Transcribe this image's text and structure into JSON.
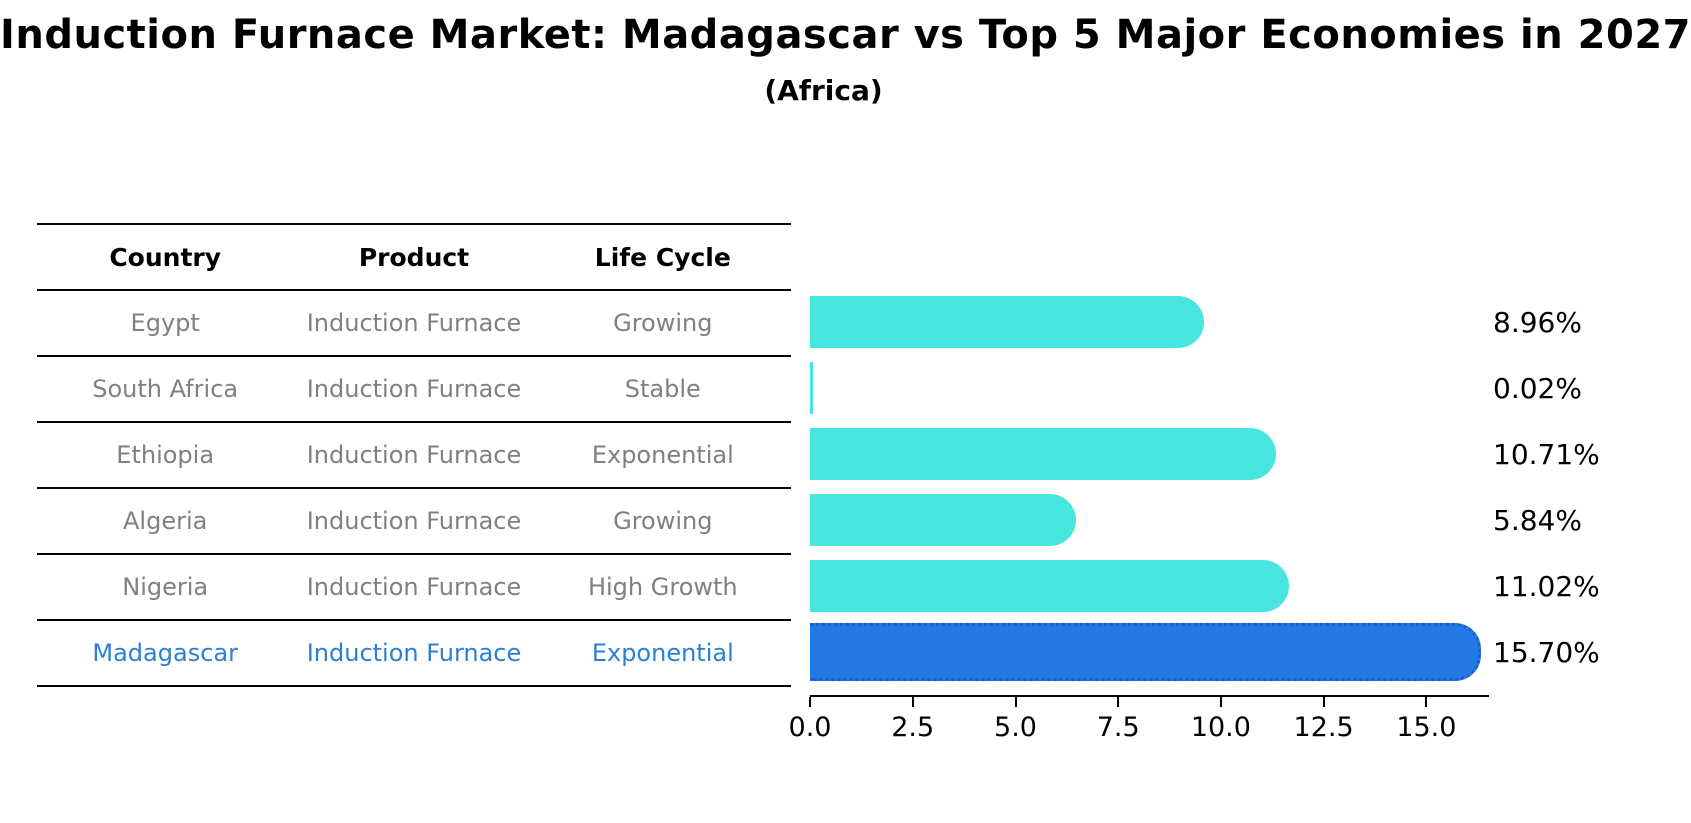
{
  "table": {
    "headers": [
      "Country",
      "Product",
      "Life Cycle"
    ],
    "rows": [
      {
        "country": "Egypt",
        "product": "Induction Furnace",
        "life_cycle": "Growing",
        "highlight": false
      },
      {
        "country": "South Africa",
        "product": "Induction Furnace",
        "life_cycle": "Stable",
        "highlight": false
      },
      {
        "country": "Ethiopia",
        "product": "Induction Furnace",
        "life_cycle": "Exponential",
        "highlight": false
      },
      {
        "country": "Algeria",
        "product": "Induction Furnace",
        "life_cycle": "Growing",
        "highlight": false
      },
      {
        "country": "Nigeria",
        "product": "Induction Furnace",
        "life_cycle": "High Growth",
        "highlight": false
      },
      {
        "country": "Madagascar",
        "product": "Induction Furnace",
        "life_cycle": "Exponential",
        "highlight": true
      }
    ]
  },
  "chart_data": {
    "type": "bar",
    "orientation": "horizontal",
    "title": "Induction Furnace Market: Madagascar vs Top 5 Major Economies in 2027",
    "subtitle": "(Africa)",
    "categories": [
      "Egypt",
      "South Africa",
      "Ethiopia",
      "Algeria",
      "Nigeria",
      "Madagascar"
    ],
    "values": [
      8.96,
      0.02,
      10.71,
      5.84,
      11.02,
      15.7
    ],
    "value_labels": [
      "8.96%",
      "0.02%",
      "10.71%",
      "5.84%",
      "11.02%",
      "15.70%"
    ],
    "x_ticks": [
      "0.0",
      "2.5",
      "5.0",
      "7.5",
      "10.0",
      "12.5",
      "15.0"
    ],
    "x_tick_values": [
      0.0,
      2.5,
      5.0,
      7.5,
      10.0,
      12.5,
      15.0
    ],
    "xlim": [
      0,
      16.5
    ],
    "xlabel": "",
    "ylabel": "",
    "grid": false,
    "legend": false,
    "highlight_index": 5,
    "bar_color": "#48e5e0",
    "highlight_bar_color": "#2379e4",
    "highlight_bar_edge_color": "#1660cf",
    "highlight_text_color": "#2b7fd4",
    "row_text_color": "#808080"
  }
}
